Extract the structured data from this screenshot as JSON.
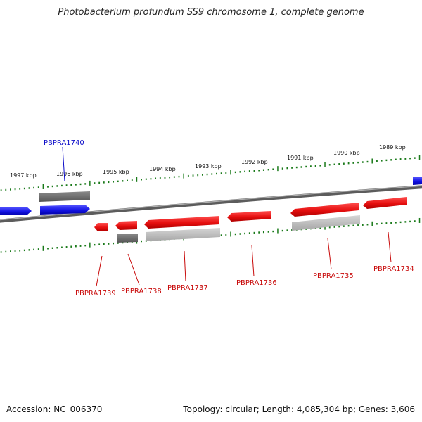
{
  "title": "Photobacterium profundum SS9 chromosome 1, complete genome",
  "footer": {
    "accession": "Accession: NC_006370",
    "topology": "Topology: circular; Length: 4,085,304 bp; Genes: 3,606"
  },
  "colors": {
    "backbone": "#7a7a7a",
    "ticks": "#1a7a1a",
    "forward_gene": "#1414e6",
    "reverse_gene": "#e60f0f",
    "dark_feature": "#6a6a6a",
    "light_feature": "#bdbdbd",
    "forward_label": "#0a0ac8",
    "reverse_label": "#c80a0a"
  },
  "scale": {
    "unit": "kbp",
    "labels": [
      "1997 kbp",
      "1996 kbp",
      "1995 kbp",
      "1994 kbp",
      "1993 kbp",
      "1992 kbp",
      "1991 kbp",
      "1990 kbp",
      "1989 kbp"
    ]
  },
  "genes": [
    {
      "label": "PBPRA1740",
      "strand": "forward"
    },
    {
      "label": "PBPRA1739",
      "strand": "reverse"
    },
    {
      "label": "PBPRA1738",
      "strand": "reverse"
    },
    {
      "label": "PBPRA1737",
      "strand": "reverse"
    },
    {
      "label": "PBPRA1736",
      "strand": "reverse"
    },
    {
      "label": "PBPRA1735",
      "strand": "reverse"
    },
    {
      "label": "PBPRA1734",
      "strand": "reverse"
    }
  ]
}
